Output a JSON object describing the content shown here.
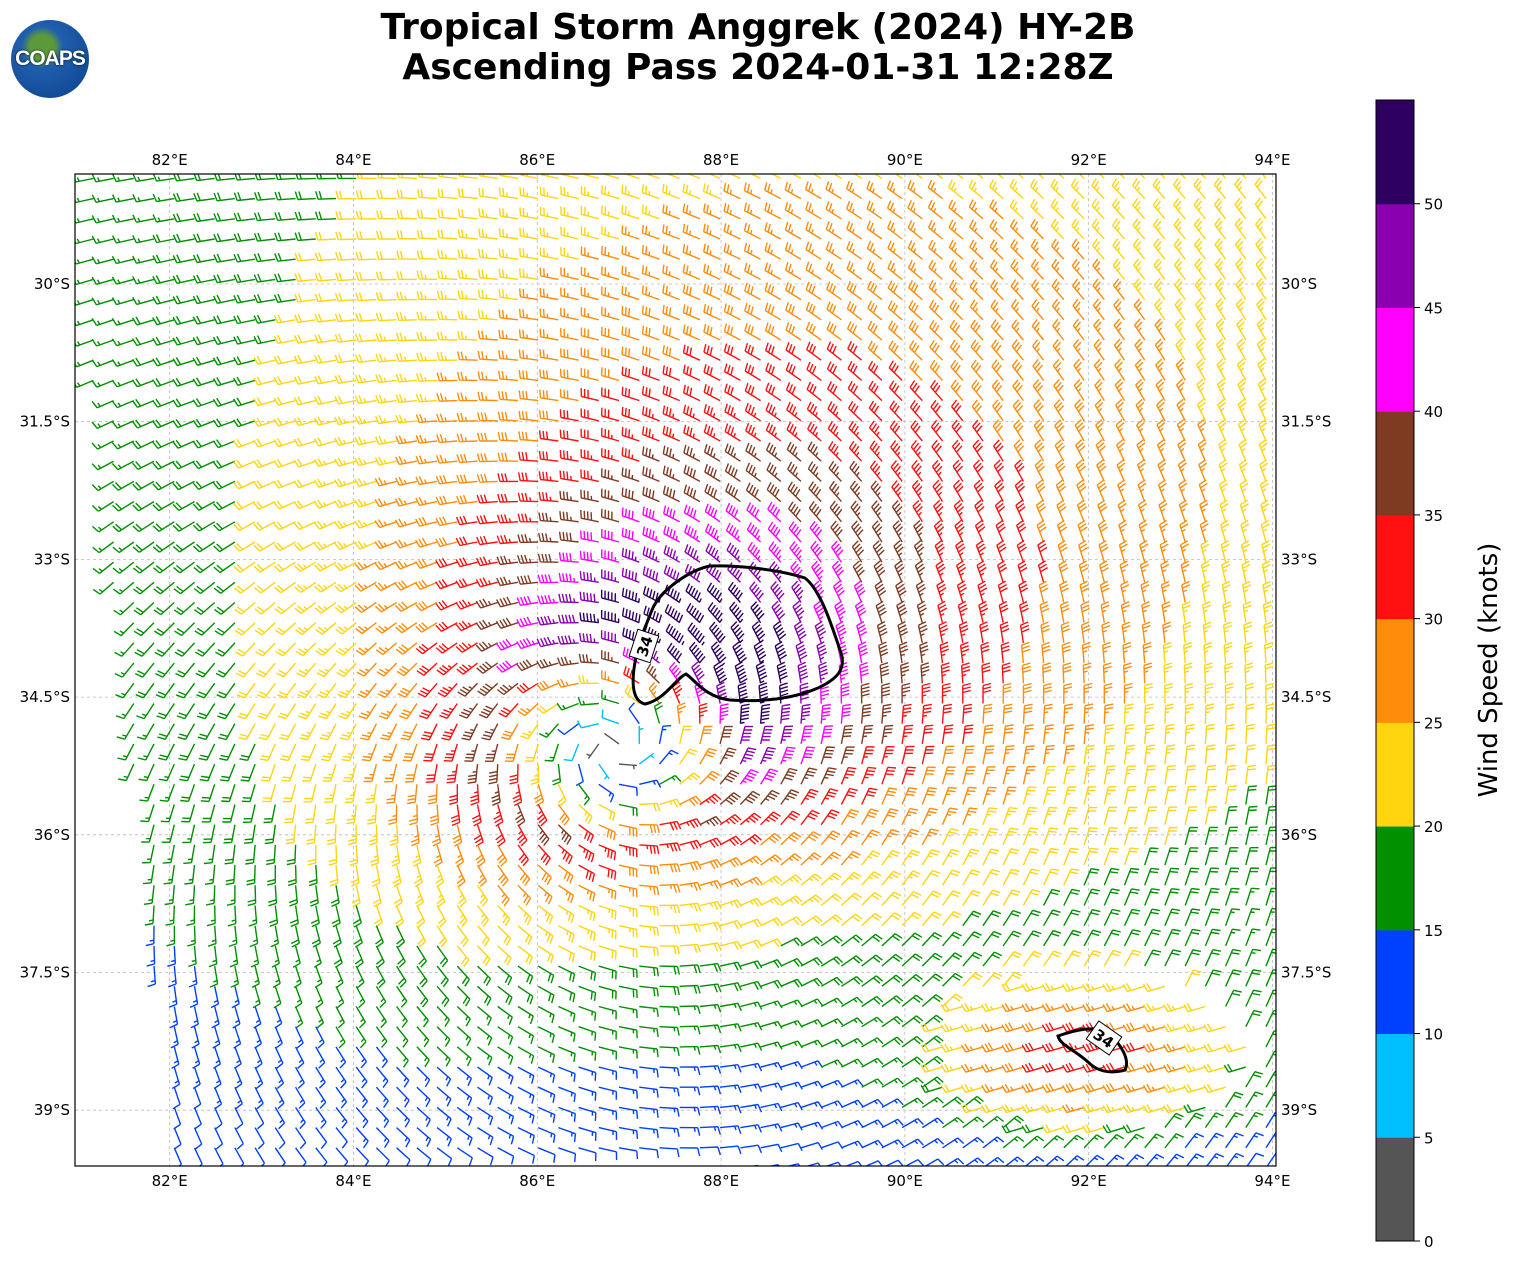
{
  "title": {
    "line1": "Tropical Storm Anggrek (2024) HY-2B",
    "line2": "Ascending Pass 2024-01-31 12:28Z"
  },
  "logo": {
    "text": "COAPS"
  },
  "chart_data": {
    "type": "wind-barb-map",
    "lon_ticks": [
      "82°E",
      "84°E",
      "86°E",
      "88°E",
      "90°E",
      "92°E",
      "94°E"
    ],
    "lon_values": [
      82,
      84,
      86,
      88,
      90,
      92,
      94
    ],
    "lat_ticks": [
      "30°S",
      "31.5°S",
      "33°S",
      "34.5°S",
      "36°S",
      "37.5°S",
      "39°S"
    ],
    "lat_values": [
      30,
      31.5,
      33,
      34.5,
      36,
      37.5,
      39
    ],
    "lon_range": [
      80.97,
      94.03
    ],
    "lat_range_south": [
      28.8,
      39.6
    ],
    "storm_center": {
      "lon": 86.9,
      "lat_south": 34.9
    },
    "max_wind_kt": 45,
    "secondary_max": {
      "lon": 92.0,
      "lat_south": 38.4,
      "wind_kt": 33
    },
    "contour_level": "34",
    "contour_labels": [
      "34",
      "34"
    ],
    "colorbar": {
      "label": "Wind Speed (knots)",
      "bounds": [
        0,
        5,
        10,
        15,
        20,
        25,
        30,
        35,
        40,
        45,
        50,
        55
      ],
      "tick_labels": [
        "0",
        "5",
        "10",
        "15",
        "20",
        "25",
        "30",
        "35",
        "40",
        "45",
        "50"
      ],
      "colors": [
        "#555555",
        "#00bfff",
        "#0040ff",
        "#009000",
        "#ffd510",
        "#ff8c0a",
        "#ff1010",
        "#7f3a22",
        "#ff00ff",
        "#8a00b0",
        "#2e0060"
      ]
    }
  }
}
